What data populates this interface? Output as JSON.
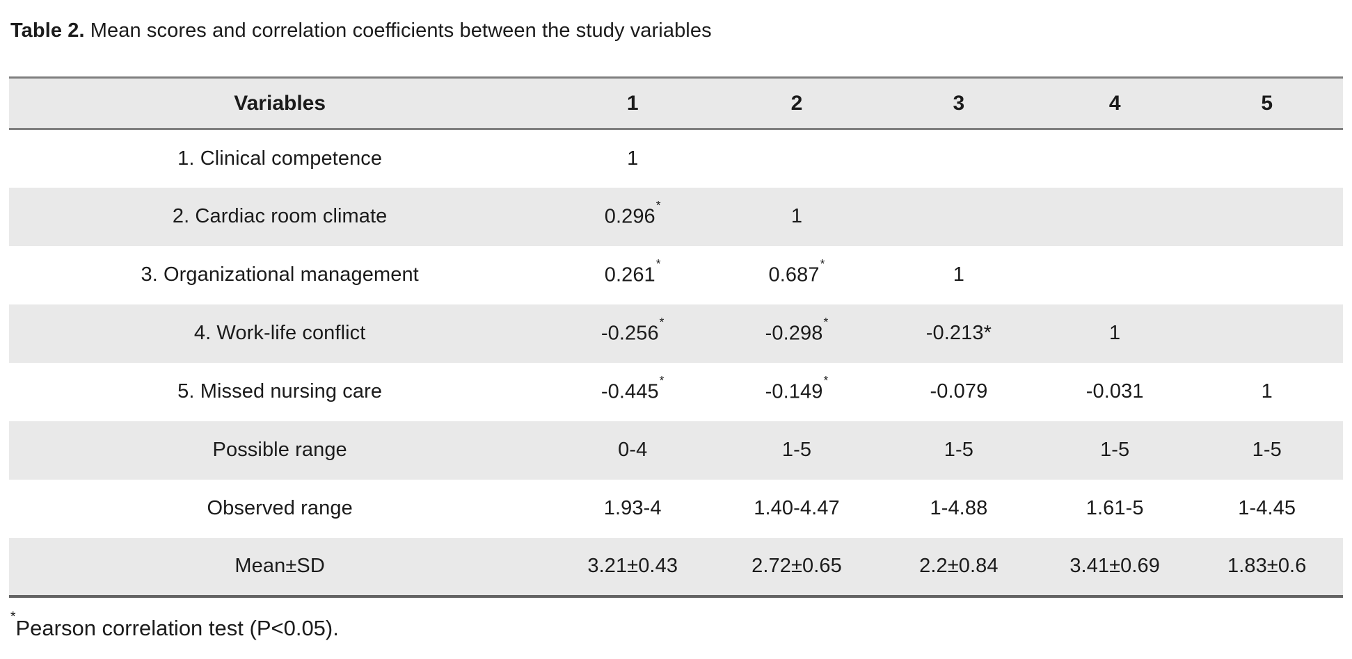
{
  "title": {
    "label": "Table 2.",
    "text": " Mean scores and correlation coefficients between the study variables"
  },
  "table": {
    "columns": [
      "Variables",
      "1",
      "2",
      "3",
      "4",
      "5"
    ],
    "rows": [
      {
        "label": "1. Clinical competence",
        "cells": [
          "1",
          "",
          "",
          "",
          ""
        ]
      },
      {
        "label": "2. Cardiac room climate",
        "cells": [
          "0.296^*",
          "1",
          "",
          "",
          ""
        ]
      },
      {
        "label": "3. Organizational management",
        "cells": [
          "0.261^*",
          "0.687^*",
          "1",
          "",
          ""
        ]
      },
      {
        "label": "4. Work-life conflict",
        "cells": [
          "-0.256^*",
          "-0.298^*",
          "-0.213*",
          "1",
          ""
        ]
      },
      {
        "label": "5. Missed nursing care",
        "cells": [
          "-0.445^*",
          "-0.149^*",
          "-0.079",
          "-0.031",
          "1"
        ]
      },
      {
        "label": "Possible range",
        "cells": [
          "0-4",
          "1-5",
          "1-5",
          "1-5",
          "1-5"
        ]
      },
      {
        "label": "Observed range",
        "cells": [
          "1.93-4",
          "1.40-4.47",
          "1-4.88",
          "1.61-5",
          "1-4.45"
        ]
      },
      {
        "label": "Mean±SD",
        "cells": [
          "3.21±0.43",
          "2.72±0.65",
          "2.2±0.84",
          "3.41±0.69",
          "1.83±0.6"
        ]
      }
    ],
    "column_widths_pct": [
      40.6,
      12.3,
      12.3,
      12.0,
      11.4,
      11.4
    ],
    "stripe_color": "#e9e9e9",
    "border_color": "#7f7f7f"
  },
  "footnote": {
    "marker": "*",
    "text": "Pearson correlation test (P<0.05)."
  }
}
